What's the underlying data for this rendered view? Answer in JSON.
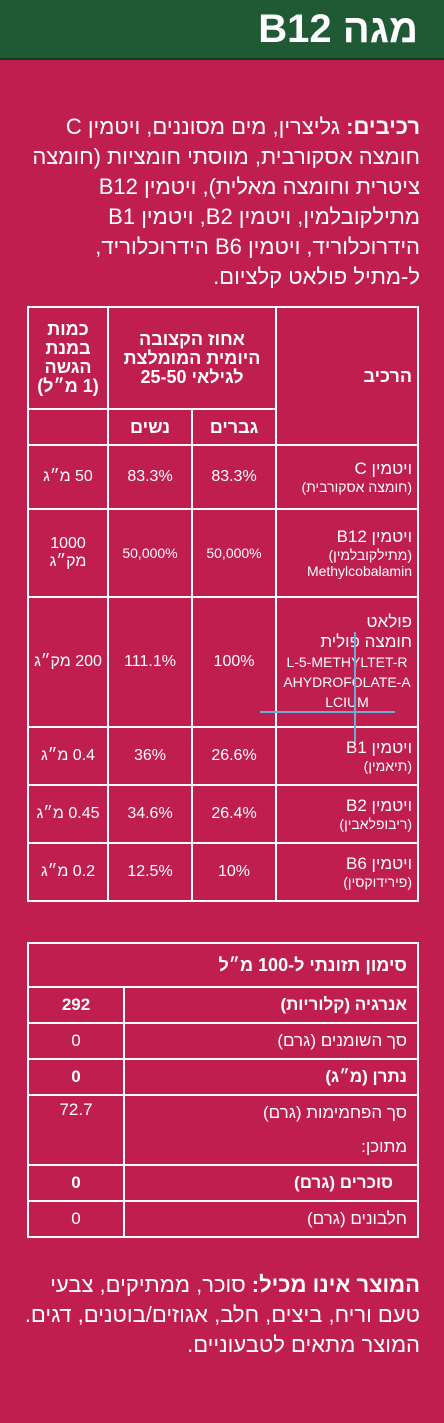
{
  "header": {
    "title": "מגה B12"
  },
  "ingredients": {
    "label": "רכיבים:",
    "text": " גליצרין, מים מסוננים, ויטמין C חומצה אסקורבית, מווסתי חומציות (חומצה ציטרית וחומצה מאלית), ויטמין B12 מתילקובלמין, ויטמין B2, ויטמין B1 הידרוכלוריד, ויטמין B6 הידרוכלוריד, ל-מתיל פולאט קלציום."
  },
  "table1": {
    "headers": {
      "component": "הרכיב",
      "daily": "אחוז הקצובה היומית המומלצת לגילאי 25-50",
      "amount": "כמות במנת הגשה (1 מ״ל)",
      "men": "גברים",
      "women": "נשים"
    },
    "rows": [
      {
        "name": "ויטמין C",
        "sub": "(חומצה אסקורבית)",
        "sub2": "",
        "men": "83.3%",
        "women": "83.3%",
        "amount": "50 מ״ג"
      },
      {
        "name": "ויטמין B12",
        "sub": "(מתילקובלמין)",
        "sub2": "Methylcobalamin",
        "men": "50,000%",
        "women": "50,000%",
        "amount": "1000 מק״ג"
      },
      {
        "name": "פולאט",
        "sub": "חומצה פולית",
        "sub2": "L-5-METHYLTET-RAHYDROFOLATE-ALCIUM",
        "men": "100%",
        "women": "111.1%",
        "amount": "200 מק״ג"
      },
      {
        "name": "ויטמין B1",
        "sub": "(תיאמין)",
        "sub2": "",
        "men": "26.6%",
        "women": "36%",
        "amount": "0.4 מ״ג"
      },
      {
        "name": "ויטמין B2",
        "sub": "(ריבופלאבין)",
        "sub2": "",
        "men": "26.4%",
        "women": "34.6%",
        "amount": "0.45 מ״ג"
      },
      {
        "name": "ויטמין B6",
        "sub": "(פירידוקסין)",
        "sub2": "",
        "men": "10%",
        "women": "12.5%",
        "amount": "0.2 מ״ג"
      }
    ]
  },
  "table2": {
    "title": "סימון תזונתי ל-100 מ״ל",
    "rows": [
      {
        "label": "אנרגיה (קלוריות)",
        "value": "292"
      },
      {
        "label": "סך השומנים (גרם)",
        "value": "0"
      },
      {
        "label": "נתרן (מ״ג)",
        "value": "0"
      },
      {
        "label": "סך הפחמימות (גרם)",
        "value": "72.7"
      },
      {
        "label": "מתוכן:",
        "value": ""
      },
      {
        "label": "סוכרים (גרם)",
        "value": "0"
      },
      {
        "label": "חלבונים (גרם)",
        "value": "0"
      }
    ]
  },
  "excludes": {
    "label": "המוצר אינו מכיל:",
    "text": " סוכר, ממתיקים, צבעי טעם וריח, ביצים, חלב, אגוזים/בוטנים, דגים. המוצר מתאים לטבעוניים."
  }
}
